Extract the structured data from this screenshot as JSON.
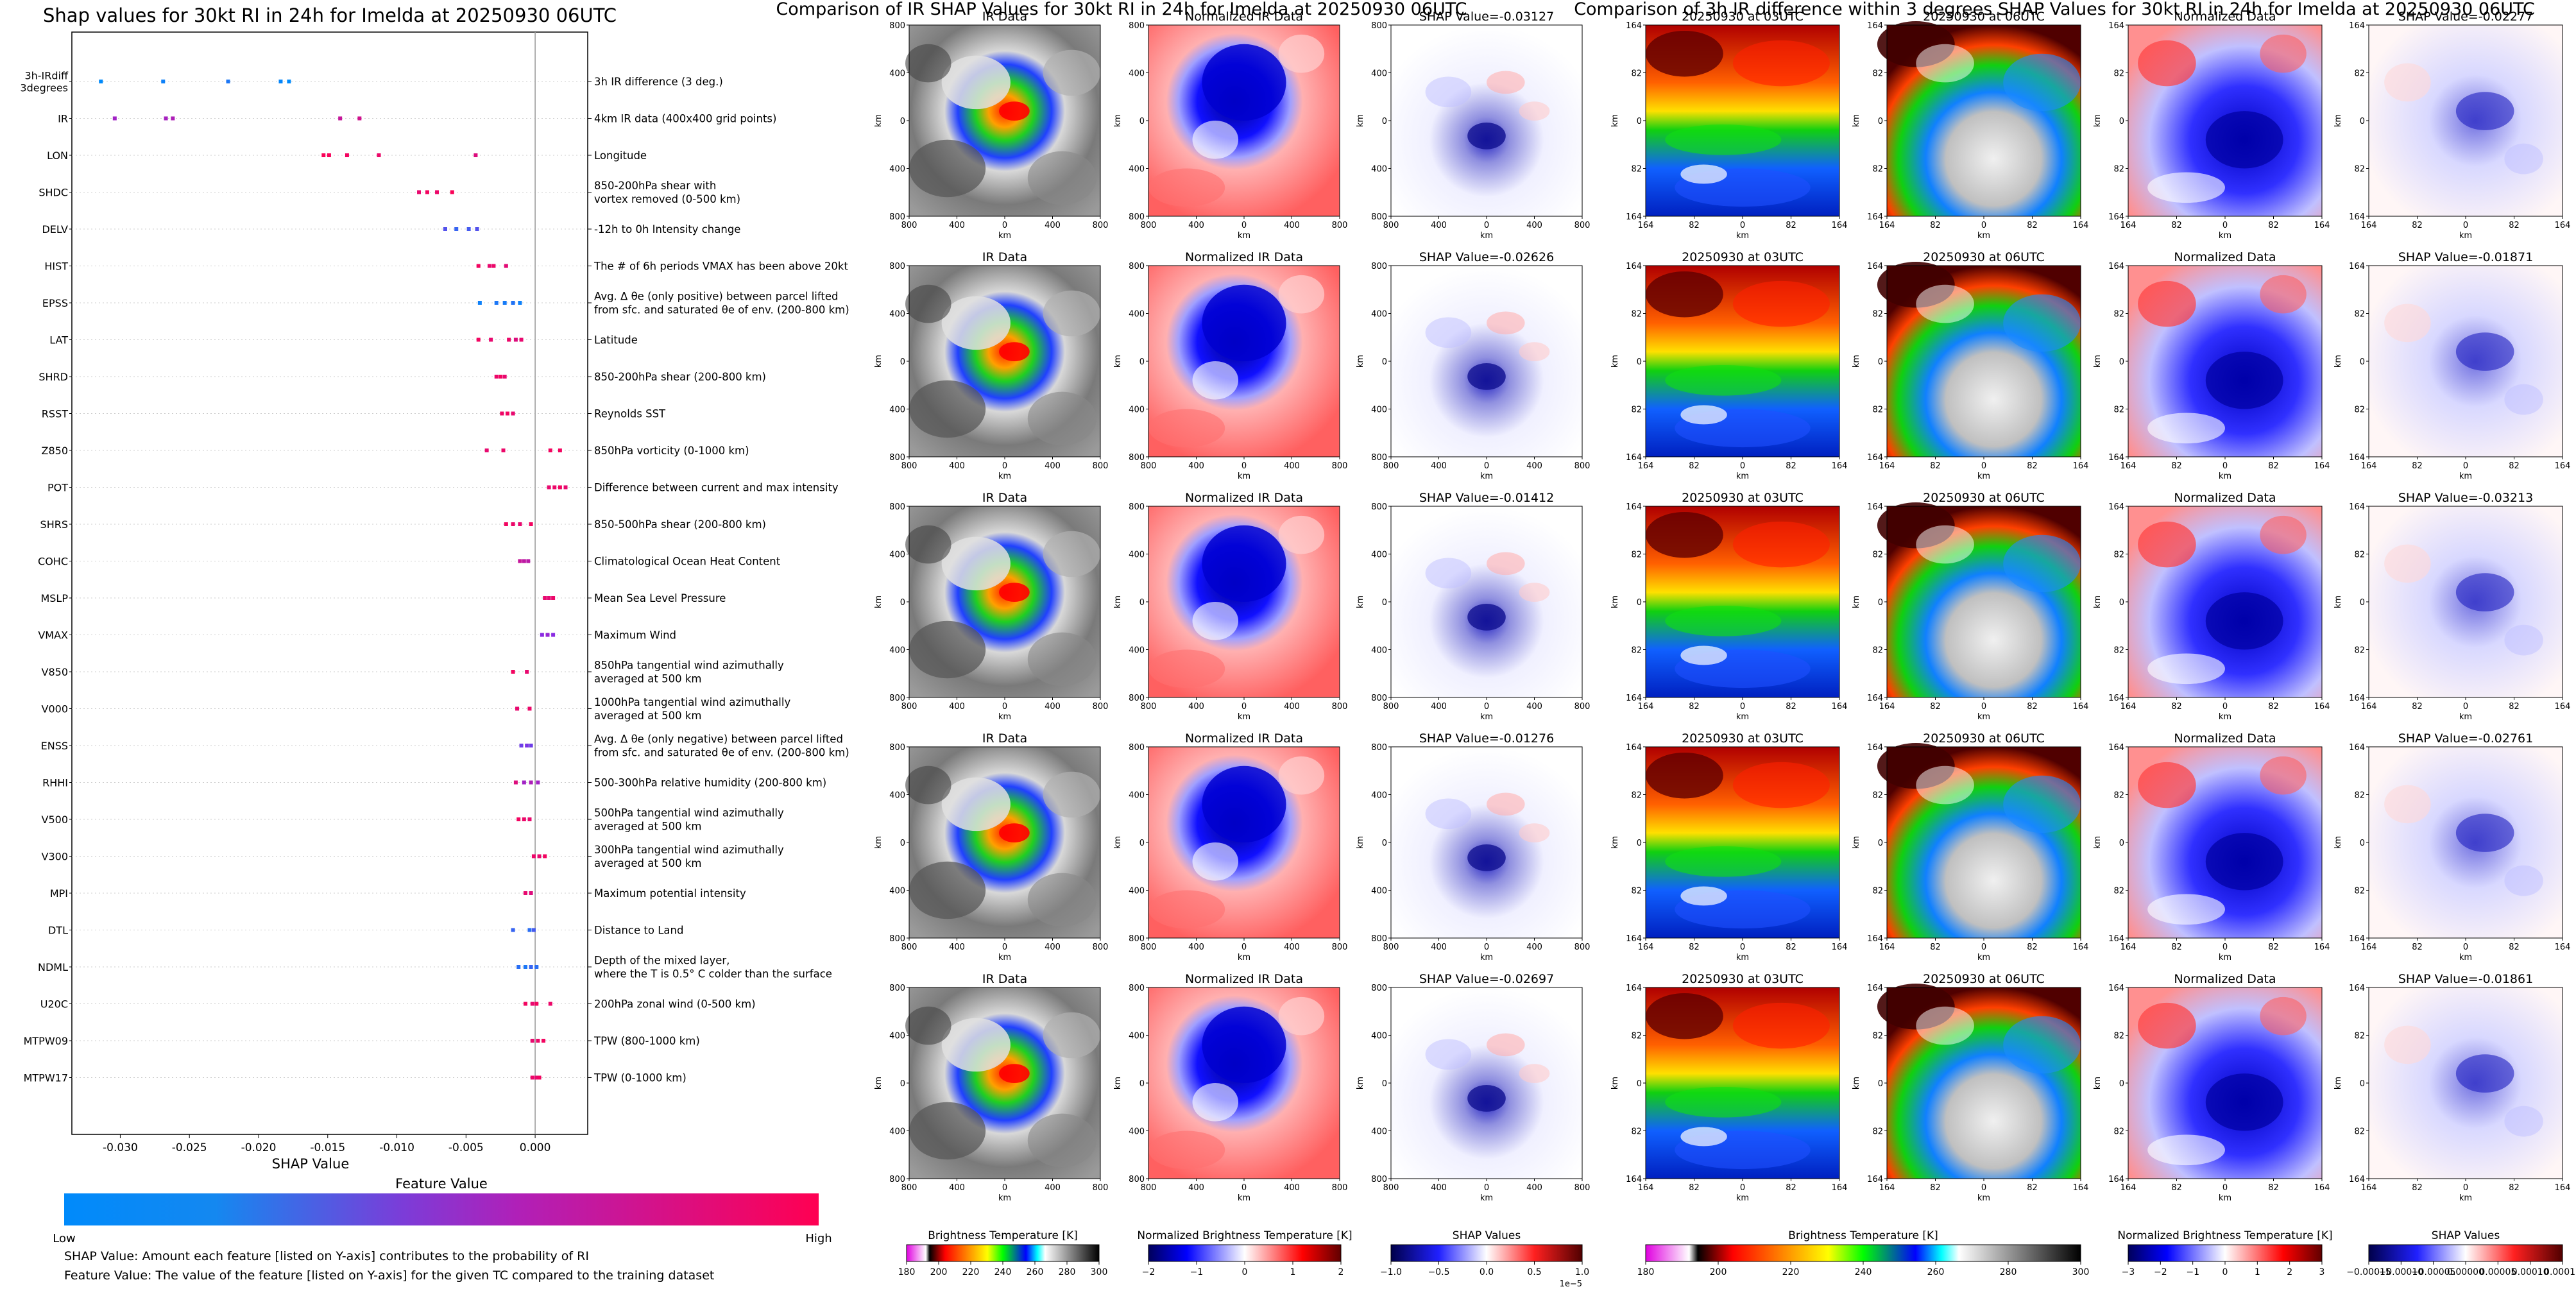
{
  "colors": {
    "low": "#008afb",
    "high": "#ff0052",
    "mid": "#8a2be2",
    "ir_gray_dark": "#3a3a3a",
    "ir_gray_light": "#c8c8c8",
    "red_bg": "#ff6060",
    "blue_core": "#0000c8",
    "shap_blue": "#3030d0",
    "shap_red": "#d03030"
  },
  "chart_data": [
    {
      "type": "beeswarm",
      "title": "Shap values for 30kt RI in 24h for Imelda at 20250930 06UTC",
      "xlabel": "SHAP Value",
      "xlim": [
        -0.0335,
        0.0038
      ],
      "xticks": [
        -0.03,
        -0.025,
        -0.02,
        -0.015,
        -0.01,
        -0.005,
        0.0
      ],
      "xtick_labels": [
        "-0.030",
        "-0.025",
        "-0.020",
        "-0.015",
        "-0.010",
        "-0.005",
        "0.000"
      ],
      "colorbar": {
        "title": "Feature Value",
        "low": "Low",
        "high": "High"
      },
      "features": [
        {
          "name": "3h-IRdiff\n3degrees",
          "desc": "3h IR difference (3 deg.)",
          "points": [
            [
              -0.0314,
              0.0
            ],
            [
              -0.0269,
              0.05
            ],
            [
              -0.0222,
              0.1
            ],
            [
              -0.0178,
              0.0
            ],
            [
              -0.0184,
              0.02
            ]
          ]
        },
        {
          "name": "IR",
          "desc": "4km IR data (400x400 grid points)",
          "points": [
            [
              -0.0304,
              0.6
            ],
            [
              -0.0267,
              0.62
            ],
            [
              -0.0262,
              0.65
            ],
            [
              -0.0141,
              0.75
            ],
            [
              -0.0127,
              0.8
            ]
          ]
        },
        {
          "name": "LON",
          "desc": "Longitude",
          "points": [
            [
              -0.0153,
              0.98
            ],
            [
              -0.0149,
              0.97
            ],
            [
              -0.0136,
              0.95
            ],
            [
              -0.0113,
              0.92
            ],
            [
              -0.0043,
              0.85
            ]
          ]
        },
        {
          "name": "SHDC",
          "desc": "850-200hPa shear with\nvortex removed (0-500 km)",
          "points": [
            [
              -0.0084,
              0.9
            ],
            [
              -0.0078,
              0.95
            ],
            [
              -0.0071,
              0.92
            ],
            [
              -0.006,
              0.98
            ]
          ]
        },
        {
          "name": "DELV",
          "desc": "-12h to 0h Intensity change",
          "points": [
            [
              -0.0065,
              0.3
            ],
            [
              -0.0057,
              0.2
            ],
            [
              -0.0048,
              0.25
            ],
            [
              -0.0042,
              0.3
            ]
          ]
        },
        {
          "name": "HIST",
          "desc": "The # of 6h periods VMAX has been above 20kt",
          "points": [
            [
              -0.0041,
              0.95
            ],
            [
              -0.0033,
              0.9
            ],
            [
              -0.003,
              0.92
            ],
            [
              -0.0021,
              0.88
            ]
          ]
        },
        {
          "name": "EPSS",
          "desc": "Avg. Δ θe (only positive) between parcel lifted\nfrom sfc. and saturated θe of env. (200-800 km)",
          "points": [
            [
              -0.004,
              0.05
            ],
            [
              -0.0028,
              0.1
            ],
            [
              -0.0022,
              0.08
            ],
            [
              -0.0016,
              0.12
            ],
            [
              -0.0011,
              0.05
            ]
          ]
        },
        {
          "name": "LAT",
          "desc": "Latitude",
          "points": [
            [
              -0.0041,
              0.95
            ],
            [
              -0.0032,
              0.9
            ],
            [
              -0.0019,
              0.92
            ],
            [
              -0.0014,
              0.85
            ],
            [
              -0.001,
              0.9
            ]
          ]
        },
        {
          "name": "SHRD",
          "desc": "850-200hPa shear (200-800 km)",
          "points": [
            [
              -0.0028,
              0.92
            ],
            [
              -0.0025,
              0.95
            ],
            [
              -0.0022,
              0.9
            ]
          ]
        },
        {
          "name": "RSST",
          "desc": "Reynolds SST",
          "points": [
            [
              -0.0024,
              0.93
            ],
            [
              -0.002,
              0.95
            ],
            [
              -0.0016,
              0.9
            ]
          ]
        },
        {
          "name": "Z850",
          "desc": "850hPa vorticity (0-1000 km)",
          "points": [
            [
              -0.0035,
              0.9
            ],
            [
              -0.0023,
              0.92
            ],
            [
              0.0011,
              0.95
            ],
            [
              0.0018,
              0.95
            ]
          ]
        },
        {
          "name": "POT",
          "desc": "Difference between current and max intensity",
          "points": [
            [
              0.001,
              0.9
            ],
            [
              0.0014,
              0.92
            ],
            [
              0.0018,
              0.95
            ],
            [
              0.0022,
              0.9
            ]
          ]
        },
        {
          "name": "SHRS",
          "desc": "850-500hPa shear (200-800 km)",
          "points": [
            [
              -0.0021,
              0.95
            ],
            [
              -0.0016,
              0.92
            ],
            [
              -0.0011,
              0.9
            ],
            [
              -0.0003,
              0.95
            ]
          ]
        },
        {
          "name": "COHC",
          "desc": "Climatological Ocean Heat Content",
          "points": [
            [
              -0.0011,
              0.75
            ],
            [
              -0.0008,
              0.72
            ],
            [
              -0.0005,
              0.7
            ]
          ]
        },
        {
          "name": "MSLP",
          "desc": "Mean Sea Level Pressure",
          "points": [
            [
              0.0007,
              0.9
            ],
            [
              0.001,
              0.88
            ],
            [
              0.0013,
              0.92
            ]
          ]
        },
        {
          "name": "VMAX",
          "desc": "Maximum Wind",
          "points": [
            [
              0.0005,
              0.5
            ],
            [
              0.0009,
              0.55
            ],
            [
              0.0013,
              0.5
            ]
          ]
        },
        {
          "name": "V850",
          "desc": "850hPa tangential wind azimuthally\naveraged at 500 km",
          "points": [
            [
              -0.0016,
              0.95
            ],
            [
              -0.0006,
              0.9
            ]
          ]
        },
        {
          "name": "V000",
          "desc": "1000hPa tangential wind azimuthally\naveraged at 500 km",
          "points": [
            [
              -0.0013,
              0.9
            ],
            [
              -0.0004,
              0.92
            ]
          ]
        },
        {
          "name": "ENSS",
          "desc": "Avg. Δ θe (only negative) between parcel lifted\nfrom sfc. and saturated θe of env. (200-800 km)",
          "points": [
            [
              -0.001,
              0.4
            ],
            [
              -0.0006,
              0.45
            ],
            [
              -0.0003,
              0.4
            ]
          ]
        },
        {
          "name": "RHHI",
          "desc": "500-300hPa relative humidity (200-800 km)",
          "points": [
            [
              -0.0014,
              0.85
            ],
            [
              -0.0008,
              0.6
            ],
            [
              -0.0003,
              0.65
            ],
            [
              0.0002,
              0.6
            ]
          ]
        },
        {
          "name": "V500",
          "desc": "500hPa tangential wind azimuthally\naveraged at 500 km",
          "points": [
            [
              -0.0012,
              0.95
            ],
            [
              -0.0008,
              0.92
            ],
            [
              -0.0004,
              0.9
            ]
          ]
        },
        {
          "name": "V300",
          "desc": "300hPa tangential wind azimuthally\naveraged at 500 km",
          "points": [
            [
              -0.0001,
              0.92
            ],
            [
              0.0003,
              0.9
            ],
            [
              0.0007,
              0.95
            ]
          ]
        },
        {
          "name": "MPI",
          "desc": "Maximum potential intensity",
          "points": [
            [
              -0.0007,
              0.9
            ],
            [
              -0.0003,
              0.85
            ]
          ]
        },
        {
          "name": "DTL",
          "desc": "Distance to Land",
          "points": [
            [
              -0.0016,
              0.2
            ],
            [
              -0.0004,
              0.15
            ],
            [
              -0.0001,
              0.25
            ]
          ]
        },
        {
          "name": "NDML",
          "desc": "Depth of the mixed layer,\nwhere the T is 0.5° C colder than the surface",
          "points": [
            [
              -0.0012,
              0.15
            ],
            [
              -0.0007,
              0.1
            ],
            [
              -0.0003,
              0.2
            ],
            [
              0.0001,
              0.15
            ]
          ]
        },
        {
          "name": "U20C",
          "desc": "200hPa zonal wind (0-500 km)",
          "points": [
            [
              -0.0007,
              0.95
            ],
            [
              -0.0002,
              0.9
            ],
            [
              0.0001,
              0.95
            ],
            [
              0.0011,
              0.92
            ]
          ]
        },
        {
          "name": "MTPW09",
          "desc": "TPW (800-1000 km)",
          "points": [
            [
              -0.0002,
              0.9
            ],
            [
              0.0002,
              0.92
            ],
            [
              0.0006,
              0.95
            ]
          ]
        },
        {
          "name": "MTPW17",
          "desc": "TPW (0-1000 km)",
          "points": [
            [
              -0.0002,
              0.92
            ],
            [
              0.0001,
              0.9
            ],
            [
              0.0003,
              0.95
            ]
          ]
        }
      ]
    },
    {
      "type": "image_grid",
      "title": "Comparison of IR SHAP Values for 30kt RI in 24h for Imelda at 20250930 06UTC",
      "columns": [
        "IR Data",
        "Normalized IR Data",
        "SHAP Value"
      ],
      "rows": 5,
      "shap_values": [
        "-0.03127",
        "-0.02626",
        "-0.01412",
        "-0.01276",
        "-0.02697"
      ],
      "shap_title_prefix": "SHAP Value=",
      "yticks": [
        "800",
        "400",
        "0",
        "400",
        "800"
      ],
      "xticks": [
        "800",
        "400",
        "0",
        "400",
        "800"
      ],
      "axis_unit": "km",
      "colorbars": [
        {
          "label": "Brightness Temperature [K]",
          "ticks": [
            "180",
            "200",
            "220",
            "240",
            "260",
            "280",
            "300"
          ]
        },
        {
          "label": "Normalized Brightness Temperature [K]",
          "ticks": [
            "−2",
            "−1",
            "0",
            "1",
            "2"
          ]
        },
        {
          "label": "SHAP Values",
          "ticks": [
            "−1.0",
            "−0.5",
            "0.0",
            "0.5",
            "1.0"
          ],
          "multiplier": "1e−5"
        }
      ]
    },
    {
      "type": "image_grid",
      "title": "Comparison of 3h IR difference within 3 degrees SHAP Values for 30kt RI in 24h for Imelda at 20250930 06UTC",
      "columns": [
        "20250930 at 03UTC",
        "20250930 at 06UTC",
        "Normalized Data",
        "SHAP Value"
      ],
      "rows": 5,
      "shap_values": [
        "-0.02277",
        "-0.01871",
        "-0.03213",
        "-0.02761",
        "-0.01861"
      ],
      "shap_title_prefix": "SHAP Value=",
      "yticks": [
        "164",
        "82",
        "0",
        "82",
        "164"
      ],
      "xticks": [
        "164",
        "82",
        "0",
        "82",
        "164"
      ],
      "axis_unit": "km",
      "colorbars": [
        {
          "label": "Brightness Temperature [K]",
          "ticks": [
            "180",
            "200",
            "220",
            "240",
            "260",
            "280",
            "300"
          ]
        },
        {
          "label": "Normalized Brightness Temperature [K]",
          "ticks": [
            "−3",
            "−2",
            "−1",
            "0",
            "1",
            "2",
            "3"
          ]
        },
        {
          "label": "SHAP Values",
          "ticks": [
            "−0.00015",
            "−0.00010",
            "−0.00005",
            "0.00000",
            "0.00005",
            "0.00010",
            "0.00015"
          ]
        }
      ]
    }
  ],
  "footnotes": {
    "line1": "SHAP Value: Amount each feature [listed on Y-axis] contributes to the probability of RI",
    "line2": "Feature Value: The value of the feature [listed on Y-axis] for the given TC compared to the training dataset"
  }
}
